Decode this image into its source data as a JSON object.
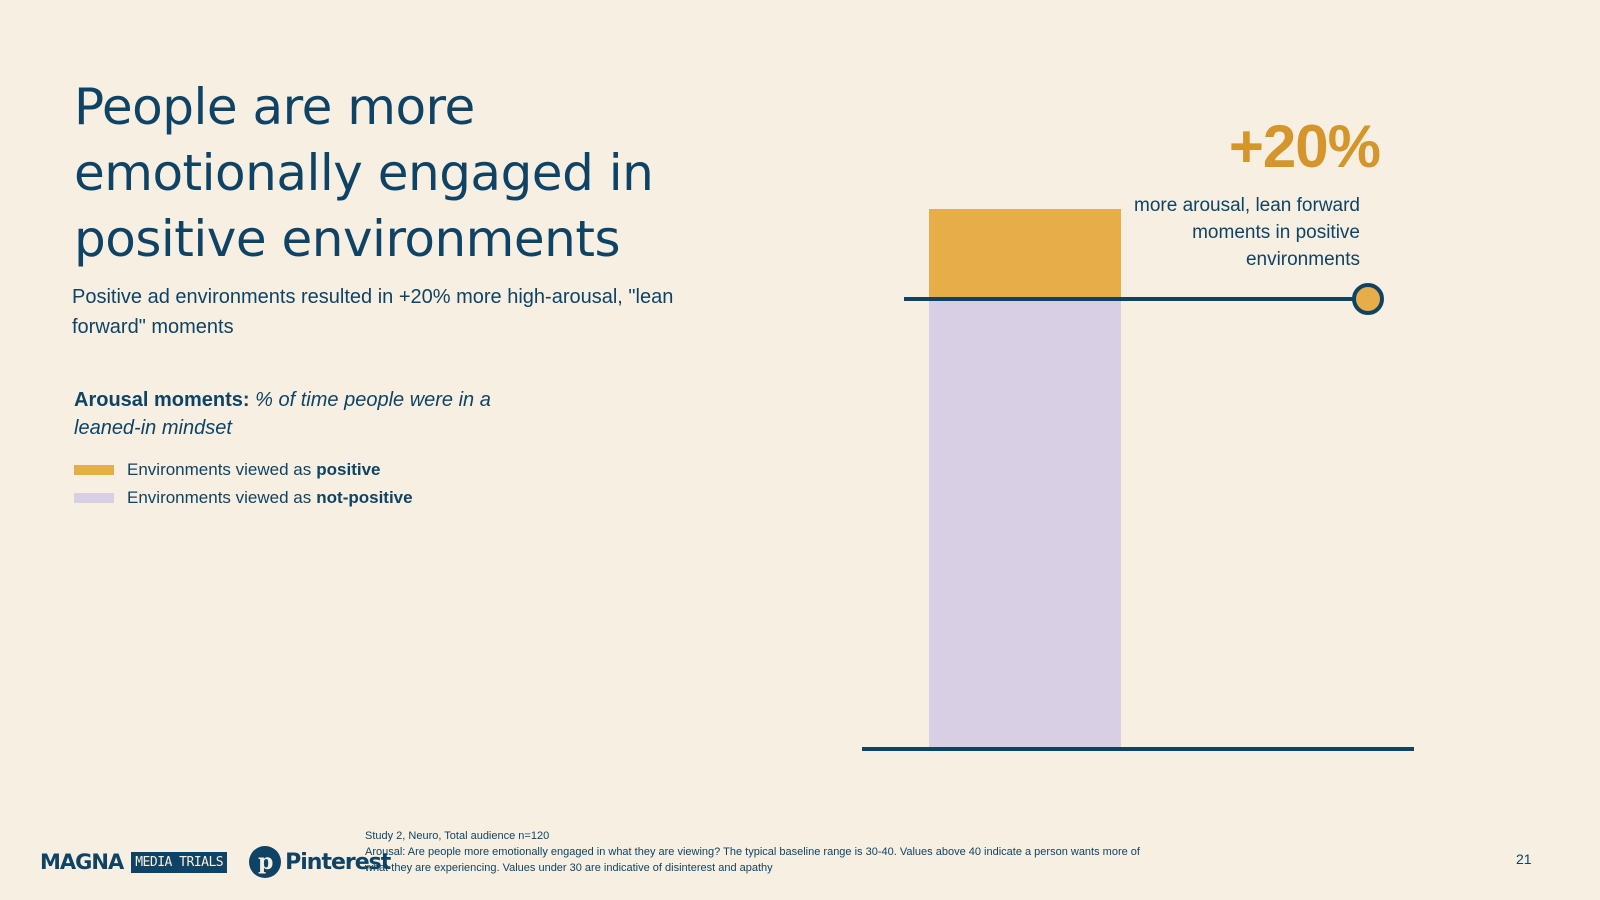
{
  "slide": {
    "title": "People are more emotionally engaged in positive environments",
    "subtitle": "Positive ad environments resulted in +20% more high-arousal, \"lean forward\" moments",
    "legend_heading_bold": "Arousal moments:",
    "legend_heading_italic": "% of time people were in a leaned-in mindset",
    "legend": [
      {
        "prefix": "Environments viewed as",
        "bold": "positive",
        "color": "#e6ad48"
      },
      {
        "prefix": "Environments viewed as",
        "bold": "not-positive",
        "color": "#d8cfe4"
      }
    ],
    "callout_value": "+20%",
    "callout_text": "more arousal, lean forward moments in positive environments",
    "footnote_line1": "Study 2, Neuro, Total audience n=120",
    "footnote_line2": "Arousal: Are people more emotionally engaged in what they are viewing? The typical baseline range is 30-40. Values above 40 indicate a person wants more of what they are experiencing.  Values under 30 are indicative of disinterest and apathy",
    "page_number": "21",
    "logos": {
      "magna": "MAGNA",
      "media_trials": "MEDIA TRIALS",
      "pinterest": "Pinterest",
      "pinterest_glyph": "p"
    }
  },
  "colors": {
    "navy": "#0f4365",
    "positive": "#e6ad48",
    "not_positive": "#d8cfe4",
    "accent_text": "#d4962b",
    "background": "#f7efe1"
  },
  "chart_data": {
    "type": "bar",
    "stacked_comparison": true,
    "series": [
      {
        "name": "Environments viewed as positive",
        "relative_value": 1.2,
        "color": "#e6ad48"
      },
      {
        "name": "Environments viewed as not-positive",
        "relative_value": 1.0,
        "color": "#d8cfe4"
      }
    ],
    "difference_label": "+20%",
    "grid": false,
    "legend_position": "left"
  }
}
